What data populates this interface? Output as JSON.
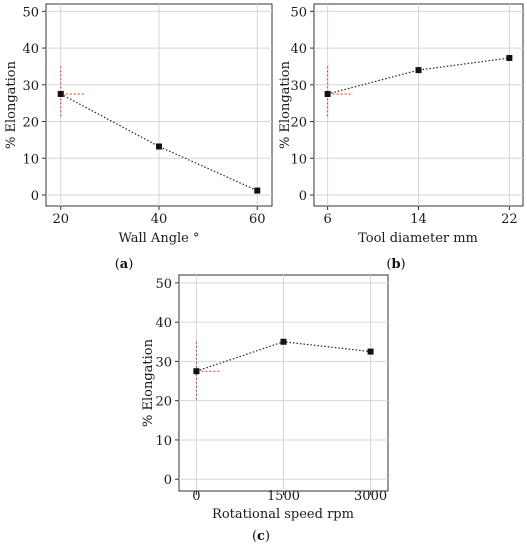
{
  "chart_data": [
    {
      "type": "line",
      "caption": "a",
      "xlabel": "Wall Angle °",
      "ylabel": "% Elongation",
      "x": [
        20,
        40,
        60
      ],
      "values": [
        27.5,
        13.2,
        1.2
      ],
      "xticks": [
        "20",
        "40",
        "60"
      ],
      "xlim": [
        17,
        63
      ],
      "ylim": [
        -3,
        52
      ],
      "yticks": [
        "0",
        "10",
        "20",
        "30",
        "40",
        "50"
      ],
      "grid": true,
      "reference": {
        "x": 20,
        "y": 27.5,
        "vspan": [
          21,
          35
        ]
      }
    },
    {
      "type": "line",
      "caption": "b",
      "xlabel": "Tool diameter mm",
      "ylabel": "% Elongation",
      "x": [
        6,
        14,
        22
      ],
      "values": [
        27.5,
        34,
        37.3
      ],
      "xticks": [
        "6",
        "14",
        "22"
      ],
      "xlim": [
        4.8,
        23.2
      ],
      "ylim": [
        -3,
        52
      ],
      "yticks": [
        "0",
        "10",
        "20",
        "30",
        "40",
        "50"
      ],
      "grid": true,
      "reference": {
        "x": 6,
        "y": 27.5,
        "vspan": [
          21,
          35
        ]
      }
    },
    {
      "type": "line",
      "caption": "c",
      "xlabel": "Rotational speed rpm",
      "ylabel": "% Elongation",
      "x": [
        0,
        1500,
        3000
      ],
      "values": [
        27.5,
        35,
        32.5
      ],
      "xticks": [
        "0",
        "1500",
        "3000"
      ],
      "xlim": [
        -300,
        3300
      ],
      "ylim": [
        -3,
        52
      ],
      "yticks": [
        "0",
        "10",
        "20",
        "30",
        "40",
        "50"
      ],
      "grid": true,
      "reference": {
        "x": 0,
        "y": 27.5,
        "vspan": [
          20,
          35
        ]
      }
    }
  ]
}
